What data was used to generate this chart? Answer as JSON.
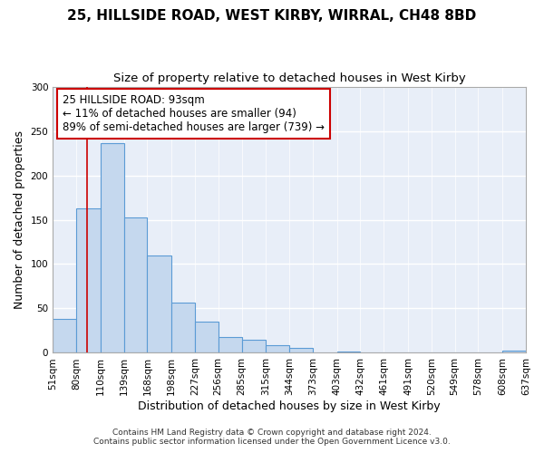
{
  "title": "25, HILLSIDE ROAD, WEST KIRBY, WIRRAL, CH48 8BD",
  "subtitle": "Size of property relative to detached houses in West Kirby",
  "xlabel": "Distribution of detached houses by size in West Kirby",
  "ylabel": "Number of detached properties",
  "bin_edges": [
    51,
    80,
    110,
    139,
    168,
    198,
    227,
    256,
    285,
    315,
    344,
    373,
    403,
    432,
    461,
    491,
    520,
    549,
    578,
    608,
    637
  ],
  "bin_labels": [
    "51sqm",
    "80sqm",
    "110sqm",
    "139sqm",
    "168sqm",
    "198sqm",
    "227sqm",
    "256sqm",
    "285sqm",
    "315sqm",
    "344sqm",
    "373sqm",
    "403sqm",
    "432sqm",
    "461sqm",
    "491sqm",
    "520sqm",
    "549sqm",
    "578sqm",
    "608sqm",
    "637sqm"
  ],
  "counts": [
    38,
    163,
    236,
    153,
    110,
    57,
    35,
    18,
    15,
    9,
    6,
    0,
    1,
    0,
    0,
    0,
    0,
    0,
    0,
    2
  ],
  "bar_color": "#c5d8ee",
  "bar_edge_color": "#5b9bd5",
  "property_line_x": 93,
  "property_line_color": "#cc0000",
  "annotation_text": "25 HILLSIDE ROAD: 93sqm\n← 11% of detached houses are smaller (94)\n89% of semi-detached houses are larger (739) →",
  "annotation_box_color": "#ffffff",
  "annotation_border_color": "#cc0000",
  "ylim": [
    0,
    300
  ],
  "yticks": [
    0,
    50,
    100,
    150,
    200,
    250,
    300
  ],
  "footer1": "Contains HM Land Registry data © Crown copyright and database right 2024.",
  "footer2": "Contains public sector information licensed under the Open Government Licence v3.0.",
  "background_color": "#ffffff",
  "plot_background_color": "#e8eef8",
  "grid_color": "#ffffff",
  "title_fontsize": 11,
  "subtitle_fontsize": 9.5,
  "axis_label_fontsize": 9,
  "tick_fontsize": 7.5,
  "annotation_fontsize": 8.5,
  "footer_fontsize": 6.5
}
